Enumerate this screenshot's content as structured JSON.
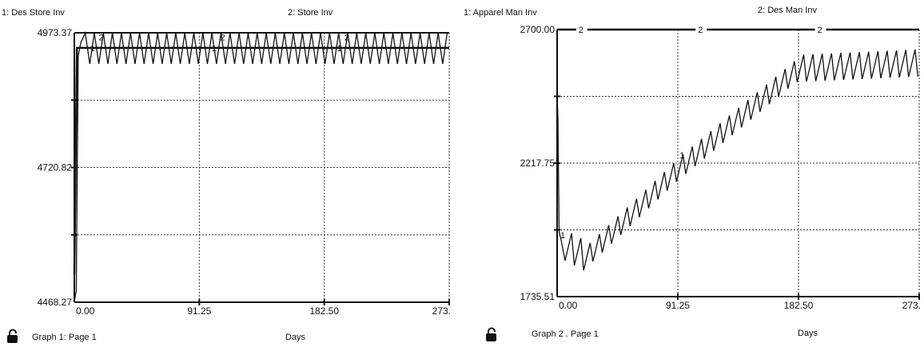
{
  "graphs": [
    {
      "legend": {
        "series1": "1: Des Store Inv",
        "series2": "2: Store Inv"
      },
      "footer": {
        "caption": "Graph 1: Page 1",
        "xlabel": "Days"
      },
      "chart_data": {
        "type": "line",
        "xlabel": "Days",
        "ylabel": "",
        "xlim": [
          0,
          290
        ],
        "ylim": [
          4468.27,
          4973.37
        ],
        "yticks": [
          "4973.37",
          "4720.82",
          "4468.27"
        ],
        "xticks": [
          "0.00",
          "91.25",
          "182.50",
          "273."
        ],
        "grid": true,
        "series": [
          {
            "name": "1: Des Store Inv",
            "marker": "1",
            "level": 4945,
            "start": 4520
          },
          {
            "name": "2: Store Inv",
            "marker": "2",
            "high": 4973,
            "low": 4915,
            "period": 7,
            "start": 4470
          }
        ]
      }
    },
    {
      "legend": {
        "series1": "1: Apparel Man Inv",
        "series2": "2: Des Man Inv"
      },
      "footer": {
        "caption": "Graph 2 . Page 1",
        "xlabel": "Days"
      },
      "chart_data": {
        "type": "line",
        "xlabel": "Days",
        "ylabel": "",
        "xlim": [
          0,
          273
        ],
        "ylim": [
          1735.51,
          2700.0
        ],
        "yticks": [
          "2700.00",
          "2217.75",
          "1735.51"
        ],
        "xticks": [
          "0.00",
          "91.25",
          "182.50",
          "273."
        ],
        "grid": true,
        "series": [
          {
            "name": "1: Apparel Man Inv",
            "marker": "1",
            "trend_x": [
              0,
              20,
              90,
              180,
              273
            ],
            "trend_y": [
              1930,
              1880,
              2200,
              2560,
              2580
            ],
            "amplitude": 90,
            "period": 7
          },
          {
            "name": "2: Des Man Inv",
            "marker": "2",
            "level": 2700
          }
        ]
      }
    }
  ]
}
